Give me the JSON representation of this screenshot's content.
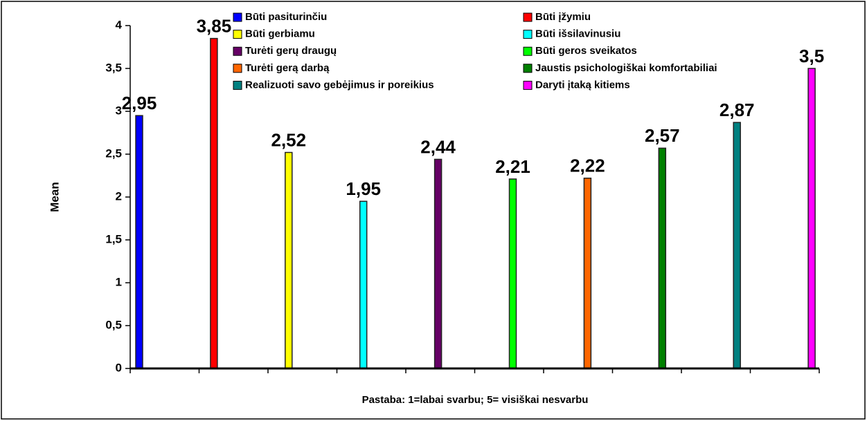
{
  "chart_data": {
    "type": "bar",
    "ylabel": "Mean",
    "note": "Pastaba: 1=labai svarbu; 5= visiškai nesvarbu",
    "ylim": [
      0,
      4
    ],
    "yticks": [
      0,
      {
        "value": 0.5,
        "label": "0,5"
      },
      1,
      {
        "value": 1.5,
        "label": "1,5"
      },
      2,
      {
        "value": 2.5,
        "label": "2,5"
      },
      3,
      {
        "value": 3.5,
        "label": "3,5"
      },
      4
    ],
    "series": [
      {
        "name": "Būti pasiturinčiu",
        "color": "#0000ff",
        "values": [
          2.95
        ],
        "value_labels": [
          "2,95"
        ]
      },
      {
        "name": "Būti įžymiu",
        "color": "#ff0000",
        "values": [
          3.85
        ],
        "value_labels": [
          "3,85"
        ]
      },
      {
        "name": "Būti gerbiamu",
        "color": "#ffff00",
        "values": [
          2.52
        ],
        "value_labels": [
          "2,52"
        ]
      },
      {
        "name": "Būti išsilavinusiu",
        "color": "#00ffff",
        "values": [
          1.95
        ],
        "value_labels": [
          "1,95"
        ]
      },
      {
        "name": "Turėti gerų draugų",
        "color": "#660066",
        "values": [
          2.44
        ],
        "value_labels": [
          "2,44"
        ]
      },
      {
        "name": "Būti geros sveikatos",
        "color": "#00ff00",
        "values": [
          2.21
        ],
        "value_labels": [
          "2,21"
        ]
      },
      {
        "name": "Turėti gerą darbą",
        "color": "#ff6600",
        "values": [
          2.22
        ],
        "value_labels": [
          "2,22"
        ]
      },
      {
        "name": "Jaustis psichologiškai komfortabiliai",
        "color": "#008000",
        "values": [
          2.57
        ],
        "value_labels": [
          "2,57"
        ]
      },
      {
        "name": "Realizuoti savo gebėjimus ir poreikius",
        "color": "#008080",
        "values": [
          2.87
        ],
        "value_labels": [
          "2,87"
        ]
      },
      {
        "name": "Daryti įtaką kitiems",
        "color": "#ff00ff",
        "values": [
          3.5
        ],
        "value_labels": [
          "3,5"
        ]
      }
    ]
  }
}
